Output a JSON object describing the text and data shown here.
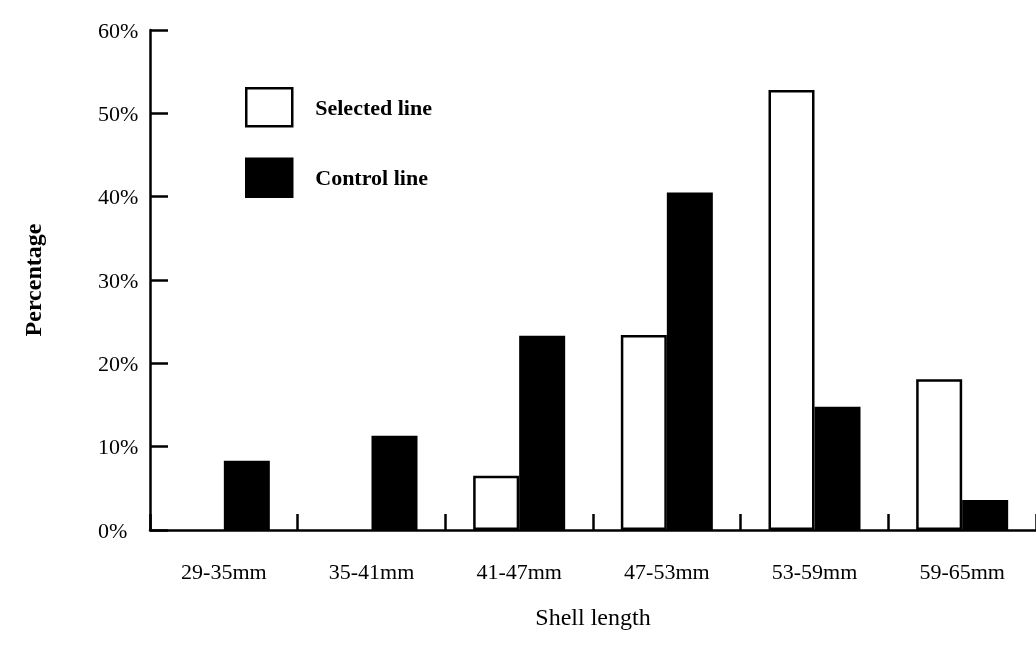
{
  "chart_data": {
    "type": "bar",
    "xlabel": "Shell length",
    "ylabel": "Percentage",
    "categories": [
      "29-35mm",
      "35-41mm",
      "41-47mm",
      "47-53mm",
      "53-59mm",
      "59-65mm"
    ],
    "series": [
      {
        "name": "Selected line",
        "color": "#ffffff",
        "values": [
          0,
          0,
          6.5,
          23.4,
          52.8,
          18.1
        ]
      },
      {
        "name": "Control line",
        "color": "#000000",
        "values": [
          8.3,
          11.3,
          23.3,
          40.5,
          14.8,
          3.6
        ]
      }
    ],
    "ylim": [
      0,
      60
    ],
    "yticks": [
      {
        "value": 0,
        "label": "0%"
      },
      {
        "value": 10,
        "label": "10%"
      },
      {
        "value": 20,
        "label": "20%"
      },
      {
        "value": 30,
        "label": "30%"
      },
      {
        "value": 40,
        "label": "40%"
      },
      {
        "value": 50,
        "label": "50%"
      },
      {
        "value": 60,
        "label": "60%"
      }
    ],
    "grid": false,
    "legend": "top left"
  }
}
